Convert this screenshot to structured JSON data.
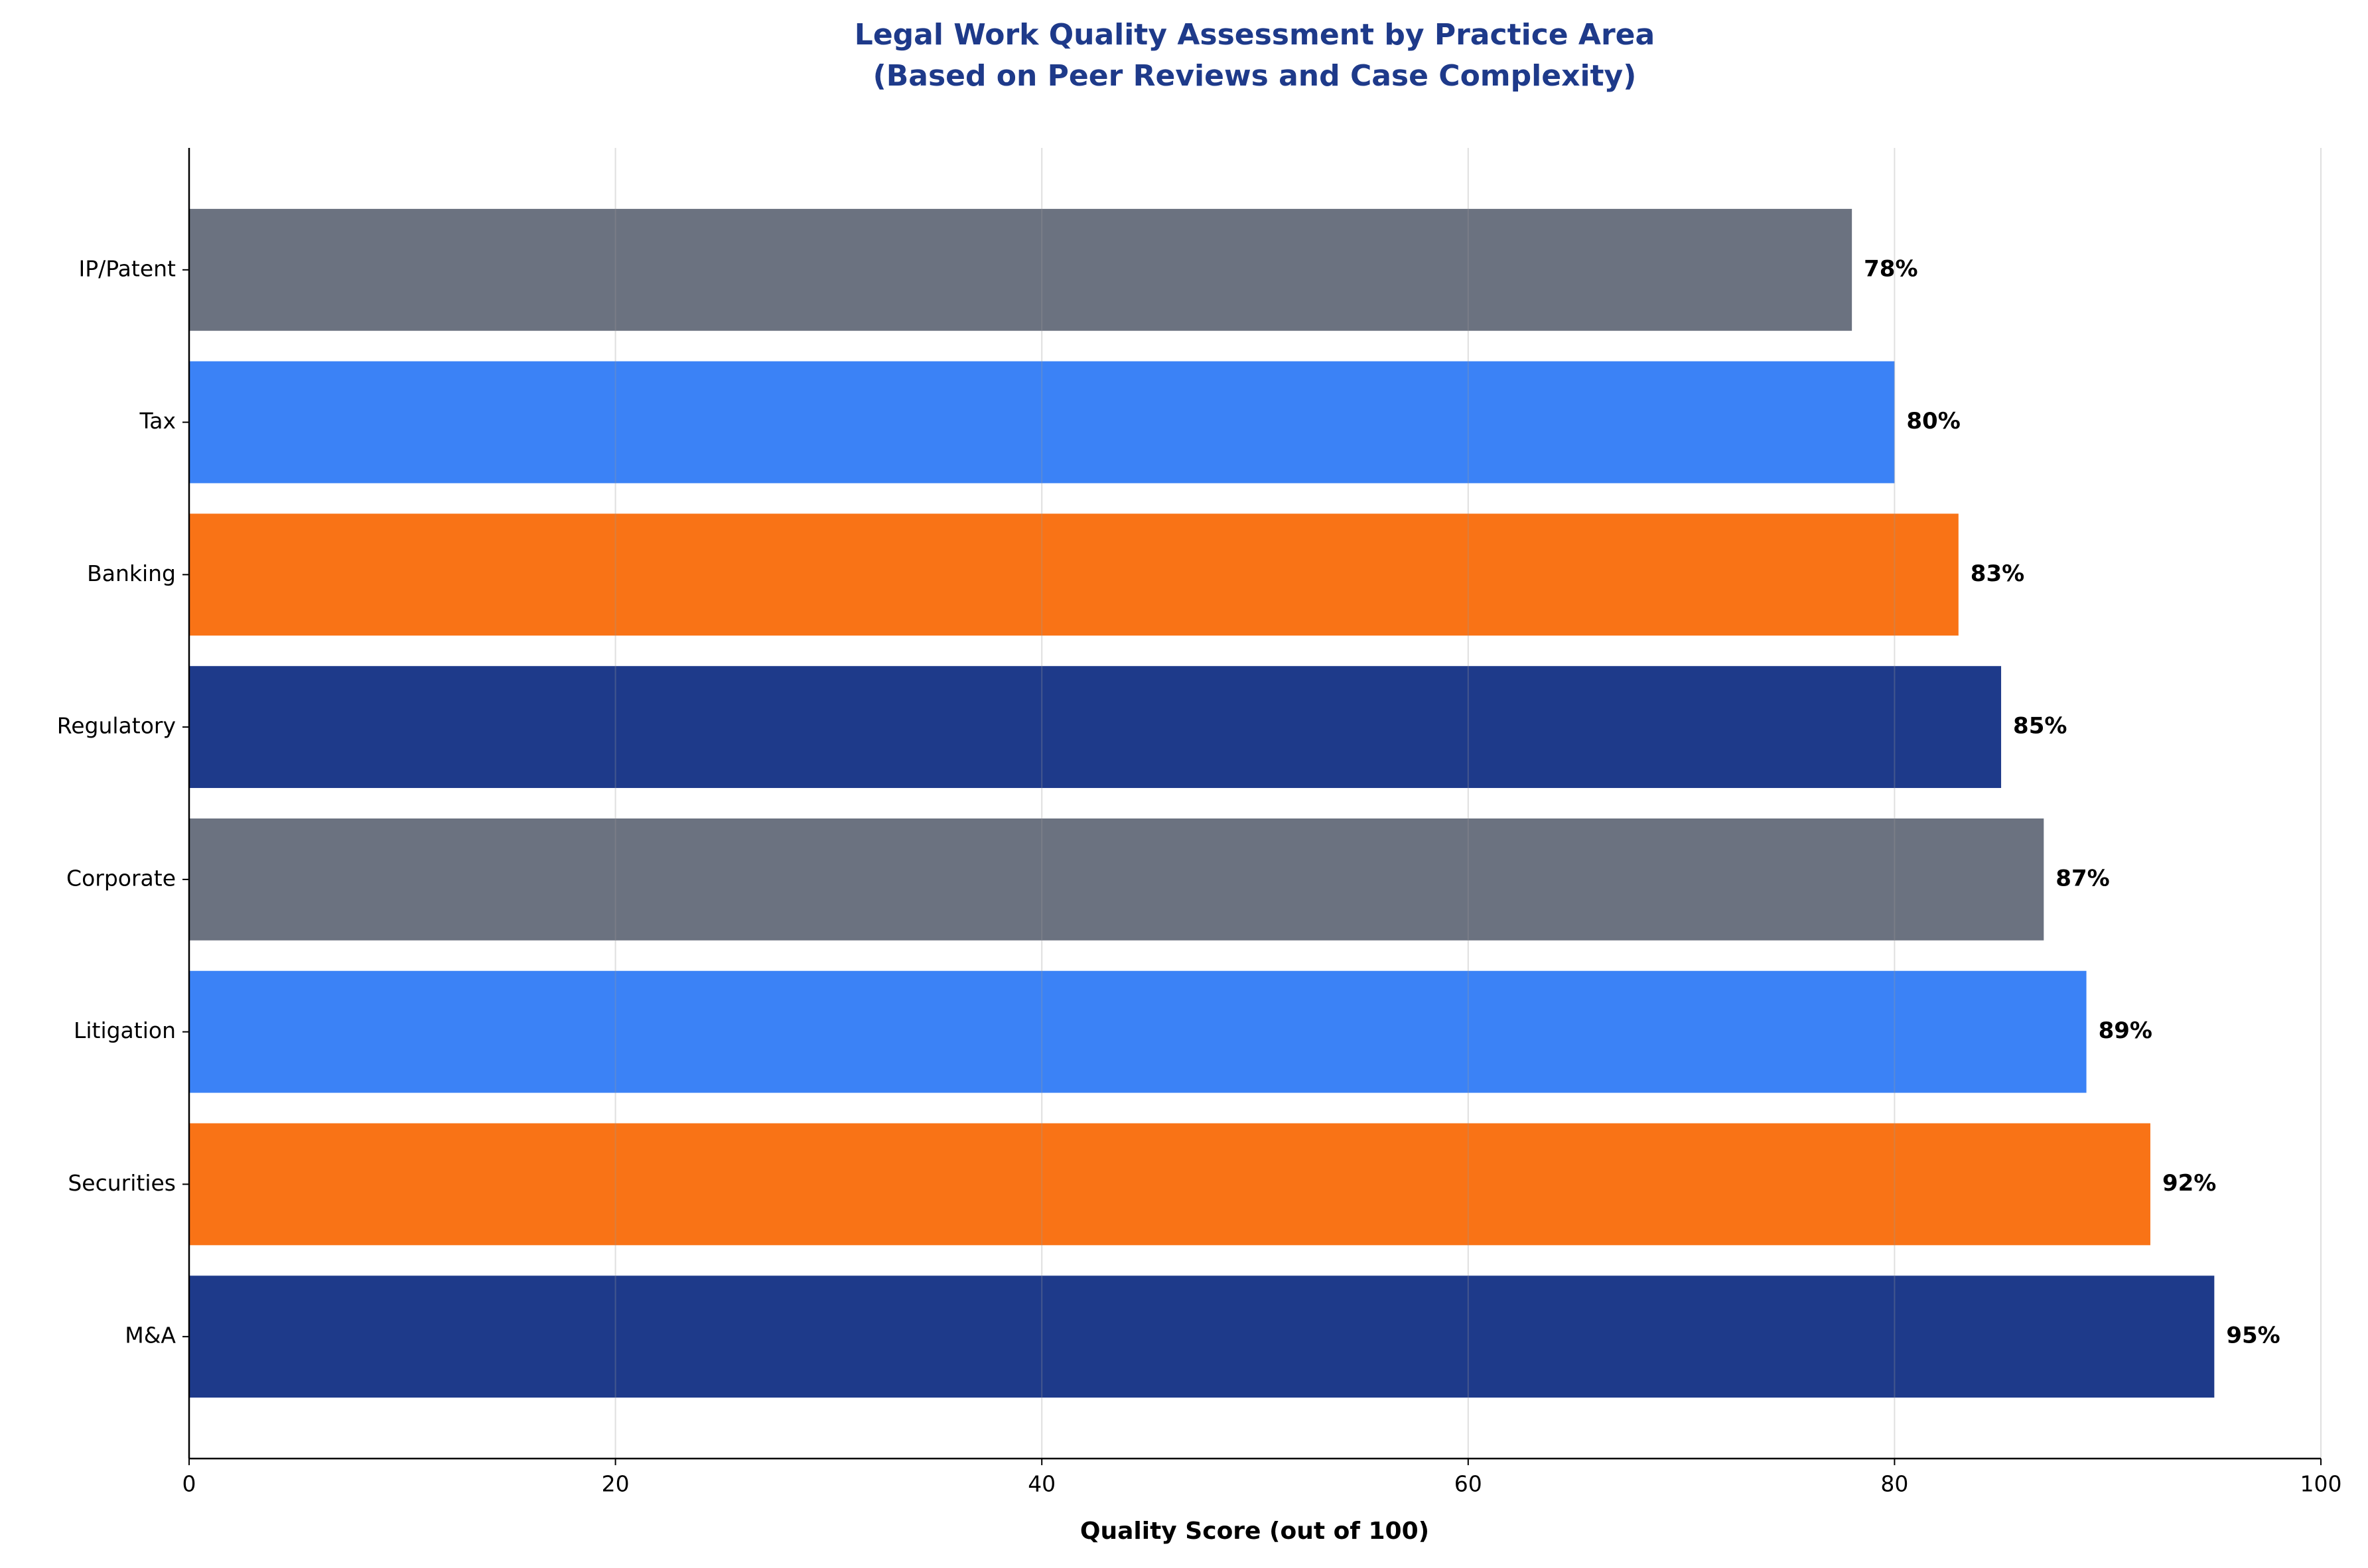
{
  "chart_data": {
    "type": "barh",
    "title": "Legal Work Quality Assessment by Practice Area",
    "subtitle": "(Based on Peer Reviews and Case Complexity)",
    "x_label": "Quality Score (out of 100)",
    "categories": [
      "M&A",
      "Securities",
      "Litigation",
      "Corporate",
      "Regulatory",
      "Banking",
      "Tax",
      "IP/Patent"
    ],
    "values": [
      95,
      92,
      89,
      87,
      85,
      83,
      80,
      78
    ],
    "value_labels": [
      "95%",
      "92%",
      "89%",
      "87%",
      "85%",
      "83%",
      "80%",
      "78%"
    ],
    "colors": [
      "#1e3a8a",
      "#f97316",
      "#3b82f6",
      "#6b7280",
      "#1e3a8a",
      "#f97316",
      "#3b82f6",
      "#6b7280"
    ],
    "xlim": [
      0,
      100
    ],
    "xticks": [
      0,
      20,
      40,
      60,
      80,
      100
    ],
    "grid": true
  }
}
